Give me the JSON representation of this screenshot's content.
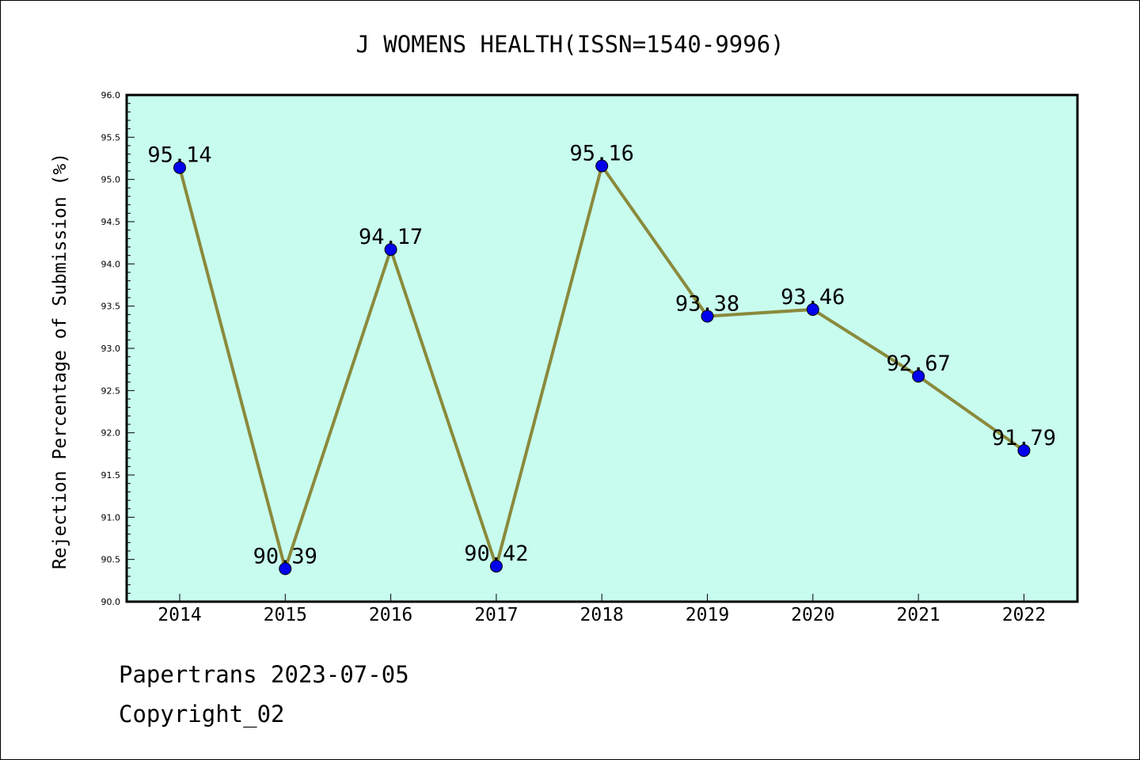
{
  "chart_data": {
    "type": "line",
    "title": "J WOMENS HEALTH(ISSN=1540-9996)",
    "xlabel": "",
    "ylabel": "Rejection Percentage of Submission (%)",
    "categories": [
      "2014",
      "2015",
      "2016",
      "2017",
      "2018",
      "2019",
      "2020",
      "2021",
      "2022"
    ],
    "series": [
      {
        "values": [
          95.14,
          90.39,
          94.17,
          90.42,
          95.16,
          93.38,
          93.46,
          92.67,
          91.79
        ],
        "labels": [
          "95.14",
          "90.39",
          "94.17",
          "90.42",
          "95.16",
          "93.38",
          "93.46",
          "92.67",
          "91.79"
        ]
      }
    ],
    "ylim": [
      90.0,
      96.0
    ],
    "yticks": [
      "90.0",
      "90.5",
      "91.0",
      "91.5",
      "92.0",
      "92.5",
      "93.0",
      "93.5",
      "94.0",
      "94.5",
      "95.0",
      "95.5",
      "96.0"
    ],
    "grid": false,
    "legend": "none",
    "colors": {
      "plot_background": "#c8fcef",
      "line": "#8a8a3c",
      "marker": "#0000ee"
    }
  },
  "footer": {
    "line1": "Papertrans 2023-07-05",
    "line2": "Copyright_02"
  }
}
